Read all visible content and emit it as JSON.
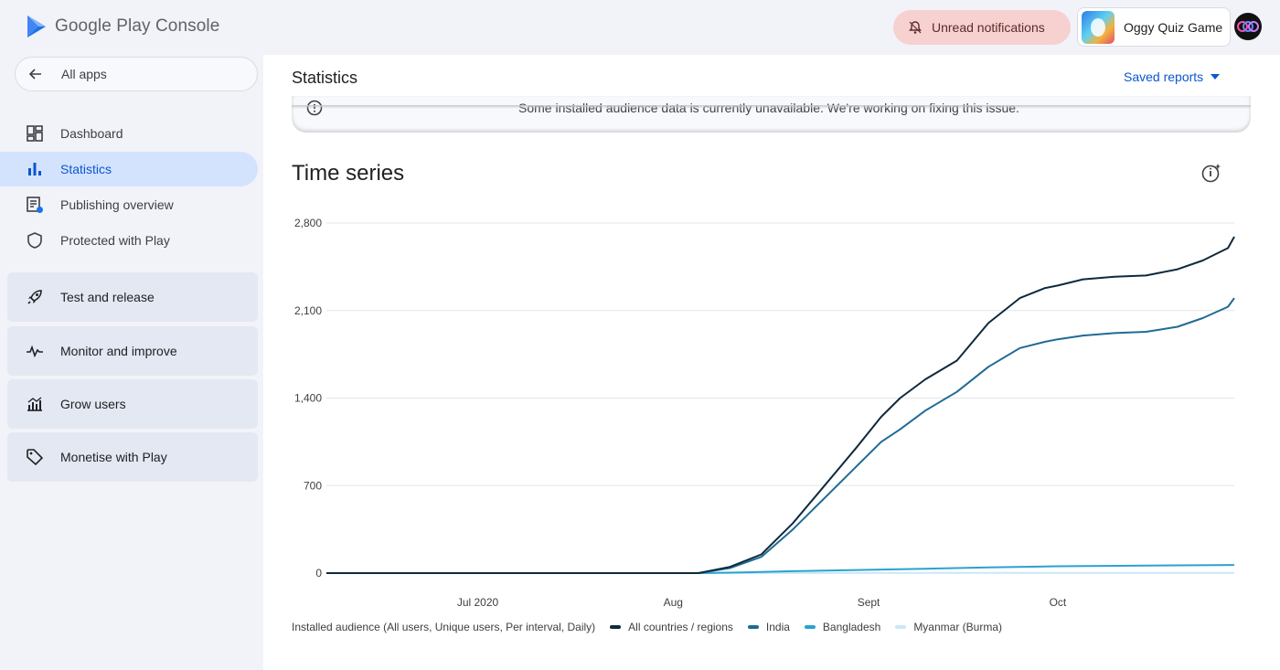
{
  "header": {
    "brand": "Google Play Console",
    "notifications_label": "Unread notifications",
    "app_name": "Oggy Quiz Game"
  },
  "sidebar": {
    "back_label": "All apps",
    "items": [
      {
        "label": "Dashboard",
        "icon": "dashboard-icon"
      },
      {
        "label": "Statistics",
        "icon": "bar-chart-icon",
        "active": true
      },
      {
        "label": "Publishing overview",
        "icon": "publishing-icon"
      },
      {
        "label": "Protected with Play",
        "icon": "shield-icon"
      }
    ],
    "groups": [
      {
        "label": "Test and release",
        "icon": "rocket-icon"
      },
      {
        "label": "Monitor and improve",
        "icon": "pulse-icon"
      },
      {
        "label": "Grow users",
        "icon": "growth-icon"
      },
      {
        "label": "Monetise with Play",
        "icon": "tag-icon"
      }
    ]
  },
  "main": {
    "title": "Statistics",
    "saved_reports_label": "Saved reports",
    "banner_text": "Some installed audience data is currently unavailable. We're working on fixing this issue.",
    "section_title": "Time series"
  },
  "colors": {
    "accent": "#0b57d0",
    "active_nav_bg": "#d3e3fd",
    "notification_bg": "#f6d1cf"
  },
  "chart_data": {
    "type": "line",
    "ylim": [
      0,
      2800
    ],
    "yticks": [
      "2,800",
      "2,100",
      "1,400",
      "700",
      "0"
    ],
    "ytick_values": [
      2800,
      2100,
      1400,
      700,
      0
    ],
    "xticks": [
      "Jul 2020",
      "Aug",
      "Sept",
      "Oct"
    ],
    "xtick_positions": [
      "2020-07-01",
      "2020-08-01",
      "2020-09-01",
      "2020-10-01"
    ],
    "x_range": [
      "2020-06-07",
      "2020-10-29"
    ],
    "legend_title": "Installed audience (All users, Unique users, Per interval, Daily)",
    "legend_position": "bottom-left",
    "series": [
      {
        "name": "All countries / regions",
        "color": "#0f2a3d",
        "points": [
          [
            "2020-06-07",
            0
          ],
          [
            "2020-08-05",
            0
          ],
          [
            "2020-08-10",
            50
          ],
          [
            "2020-08-15",
            150
          ],
          [
            "2020-08-20",
            400
          ],
          [
            "2020-08-25",
            700
          ],
          [
            "2020-08-30",
            1000
          ],
          [
            "2020-09-03",
            1250
          ],
          [
            "2020-09-06",
            1400
          ],
          [
            "2020-09-10",
            1550
          ],
          [
            "2020-09-15",
            1700
          ],
          [
            "2020-09-20",
            2000
          ],
          [
            "2020-09-25",
            2200
          ],
          [
            "2020-09-29",
            2280
          ],
          [
            "2020-10-01",
            2300
          ],
          [
            "2020-10-05",
            2350
          ],
          [
            "2020-10-10",
            2370
          ],
          [
            "2020-10-15",
            2380
          ],
          [
            "2020-10-20",
            2430
          ],
          [
            "2020-10-24",
            2500
          ],
          [
            "2020-10-28",
            2600
          ],
          [
            "2020-10-29",
            2690
          ]
        ]
      },
      {
        "name": "India",
        "color": "#1f6b95",
        "points": [
          [
            "2020-06-07",
            0
          ],
          [
            "2020-08-05",
            0
          ],
          [
            "2020-08-10",
            40
          ],
          [
            "2020-08-15",
            130
          ],
          [
            "2020-08-20",
            350
          ],
          [
            "2020-08-25",
            600
          ],
          [
            "2020-08-30",
            850
          ],
          [
            "2020-09-03",
            1050
          ],
          [
            "2020-09-06",
            1150
          ],
          [
            "2020-09-10",
            1300
          ],
          [
            "2020-09-15",
            1450
          ],
          [
            "2020-09-20",
            1650
          ],
          [
            "2020-09-25",
            1800
          ],
          [
            "2020-09-29",
            1850
          ],
          [
            "2020-10-01",
            1870
          ],
          [
            "2020-10-05",
            1900
          ],
          [
            "2020-10-10",
            1920
          ],
          [
            "2020-10-15",
            1930
          ],
          [
            "2020-10-20",
            1970
          ],
          [
            "2020-10-24",
            2040
          ],
          [
            "2020-10-28",
            2130
          ],
          [
            "2020-10-29",
            2200
          ]
        ]
      },
      {
        "name": "Bangladesh",
        "color": "#2aa2d0",
        "points": [
          [
            "2020-06-07",
            0
          ],
          [
            "2020-08-05",
            0
          ],
          [
            "2020-08-12",
            5
          ],
          [
            "2020-08-20",
            15
          ],
          [
            "2020-08-30",
            25
          ],
          [
            "2020-09-10",
            35
          ],
          [
            "2020-09-20",
            45
          ],
          [
            "2020-10-01",
            55
          ],
          [
            "2020-10-15",
            60
          ],
          [
            "2020-10-29",
            65
          ]
        ]
      },
      {
        "name": "Myanmar (Burma)",
        "color": "#c9e8f5",
        "points": [
          [
            "2020-06-07",
            0
          ],
          [
            "2020-10-29",
            2
          ]
        ]
      }
    ]
  }
}
